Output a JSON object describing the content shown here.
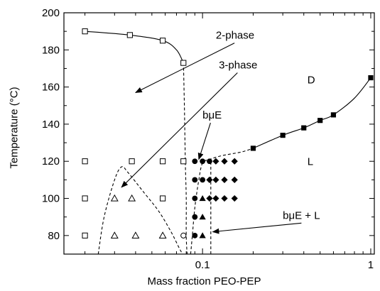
{
  "chart_data": {
    "type": "scatter",
    "title": "",
    "xlabel": "Mass fraction PEO-PEP",
    "ylabel": "Temperature (°C)",
    "x_scale": "log",
    "xlim": [
      0.015,
      1.05
    ],
    "ylim": [
      70,
      200
    ],
    "x_ticks": [
      {
        "value": 0.1,
        "label": "0.1"
      },
      {
        "value": 1,
        "label": "1"
      }
    ],
    "y_ticks": [
      80,
      100,
      120,
      140,
      160,
      180,
      200
    ],
    "series": [
      {
        "marker": "open-square",
        "points": [
          [
            0.02,
            190
          ],
          [
            0.037,
            188
          ],
          [
            0.058,
            185
          ],
          [
            0.077,
            173
          ],
          [
            0.02,
            120
          ],
          [
            0.038,
            120
          ],
          [
            0.058,
            120
          ],
          [
            0.077,
            120
          ],
          [
            0.02,
            100
          ],
          [
            0.058,
            100
          ],
          [
            0.02,
            80
          ]
        ]
      },
      {
        "marker": "open-triangle",
        "points": [
          [
            0.03,
            100
          ],
          [
            0.038,
            100
          ],
          [
            0.03,
            80
          ],
          [
            0.04,
            80
          ],
          [
            0.058,
            80
          ]
        ]
      },
      {
        "marker": "open-circle",
        "points": [
          [
            0.077,
            80
          ]
        ]
      },
      {
        "marker": "filled-circle",
        "points": [
          [
            0.09,
            120
          ],
          [
            0.1,
            120
          ],
          [
            0.11,
            120
          ],
          [
            0.09,
            110
          ],
          [
            0.1,
            110
          ],
          [
            0.09,
            100
          ],
          [
            0.09,
            90
          ],
          [
            0.09,
            80
          ]
        ]
      },
      {
        "marker": "filled-triangle",
        "points": [
          [
            0.1,
            100
          ],
          [
            0.1,
            90
          ],
          [
            0.1,
            80
          ]
        ]
      },
      {
        "marker": "filled-diamond",
        "points": [
          [
            0.12,
            120
          ],
          [
            0.135,
            120
          ],
          [
            0.155,
            120
          ],
          [
            0.11,
            110
          ],
          [
            0.12,
            110
          ],
          [
            0.135,
            110
          ],
          [
            0.155,
            110
          ],
          [
            0.11,
            100
          ],
          [
            0.12,
            100
          ],
          [
            0.135,
            100
          ],
          [
            0.155,
            100
          ]
        ]
      },
      {
        "marker": "filled-square",
        "points": [
          [
            0.2,
            127
          ],
          [
            0.3,
            134
          ],
          [
            0.4,
            138
          ],
          [
            0.5,
            142
          ],
          [
            0.6,
            145
          ],
          [
            1.0,
            165
          ]
        ]
      }
    ],
    "curves": [
      {
        "style": "solid",
        "points": [
          [
            0.02,
            190
          ],
          [
            0.037,
            188
          ],
          [
            0.058,
            185
          ],
          [
            0.07,
            180
          ],
          [
            0.077,
            173
          ]
        ]
      },
      {
        "style": "dashed",
        "points": [
          [
            0.077,
            173
          ],
          [
            0.078,
            150
          ],
          [
            0.079,
            120
          ],
          [
            0.08,
            100
          ],
          [
            0.08,
            80
          ],
          [
            0.081,
            70
          ]
        ]
      },
      {
        "style": "dashed",
        "points": [
          [
            0.024,
            70
          ],
          [
            0.026,
            90
          ],
          [
            0.03,
            110
          ],
          [
            0.033,
            117
          ],
          [
            0.036,
            114
          ],
          [
            0.045,
            103
          ],
          [
            0.055,
            93
          ],
          [
            0.065,
            82
          ],
          [
            0.072,
            74
          ],
          [
            0.076,
            70
          ]
        ]
      },
      {
        "style": "dashed",
        "points": [
          [
            0.085,
            70
          ],
          [
            0.087,
            80
          ],
          [
            0.09,
            95
          ],
          [
            0.095,
            110
          ],
          [
            0.1,
            119
          ],
          [
            0.11,
            121
          ],
          [
            0.13,
            123
          ],
          [
            0.17,
            125
          ],
          [
            0.2,
            127
          ]
        ]
      },
      {
        "style": "dashed",
        "points": [
          [
            0.112,
            70
          ],
          [
            0.112,
            90
          ],
          [
            0.112,
            110
          ],
          [
            0.112,
            120
          ]
        ]
      },
      {
        "style": "solid",
        "points": [
          [
            0.2,
            127
          ],
          [
            0.3,
            134
          ],
          [
            0.4,
            138
          ],
          [
            0.5,
            142
          ],
          [
            0.6,
            145
          ],
          [
            0.8,
            154
          ],
          [
            1.0,
            165
          ]
        ]
      }
    ],
    "annotations": [
      {
        "text": "2-phase",
        "x": 0.12,
        "y": 186,
        "arrow_to": [
          0.04,
          157
        ]
      },
      {
        "text": "3-phase",
        "x": 0.125,
        "y": 170,
        "arrow_to": [
          0.033,
          106
        ]
      },
      {
        "text": "bμE",
        "x": 0.1,
        "y": 143,
        "arrow_to": [
          0.095,
          121
        ]
      },
      {
        "text": "bμE + L",
        "x": 0.3,
        "y": 89,
        "arrow_to": [
          0.115,
          82
        ]
      },
      {
        "text": "D",
        "x": 0.42,
        "y": 162
      },
      {
        "text": "L",
        "x": 0.42,
        "y": 118
      }
    ]
  }
}
